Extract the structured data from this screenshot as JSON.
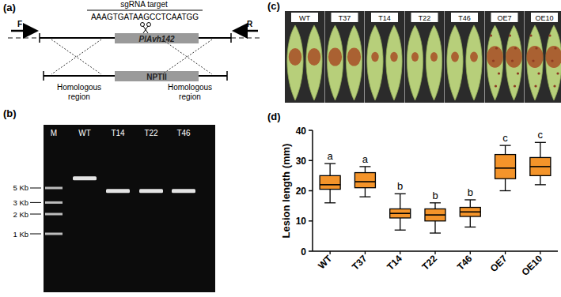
{
  "chart_data": {
    "type": "box",
    "panel_label": "(d)",
    "ylabel": "Lesion length (mm)",
    "categories": [
      "WT",
      "T37",
      "T14",
      "T22",
      "T46",
      "OE7",
      "OE10"
    ],
    "min": [
      16,
      18,
      7,
      6,
      8,
      20,
      22
    ],
    "q1": [
      20.5,
      21,
      11,
      10,
      11.5,
      24,
      25
    ],
    "median": [
      22,
      23,
      12.5,
      12,
      13,
      27.5,
      28
    ],
    "q3": [
      25,
      26,
      14,
      14,
      14.5,
      32,
      31
    ],
    "max": [
      29,
      28,
      19,
      16,
      17,
      35,
      36
    ],
    "letters": [
      "a",
      "a",
      "b",
      "b",
      "b",
      "c",
      "c"
    ],
    "color": "#f4942a",
    "ylim": [
      0,
      40
    ],
    "yticks": [
      0,
      10,
      20,
      30,
      40
    ],
    "grid": false
  },
  "panel_a": {
    "label": "(a)",
    "sgrna_label": "sgRNA target",
    "sequence": "AAAGTGATAAGCCTCAATGG",
    "gene": "PlAvh142",
    "marker_gene": "NPTII",
    "homologous": [
      "Homologous region",
      "Homologous region"
    ],
    "primers": [
      "F",
      "R"
    ]
  },
  "panel_b": {
    "label": "(b)",
    "lanes": [
      "M",
      "WT",
      "T14",
      "T22",
      "T46"
    ],
    "ladder": [
      {
        "value": 5,
        "label": "5 Kb"
      },
      {
        "value": 3,
        "label": "3 Kb"
      },
      {
        "value": 2,
        "label": "2 Kb"
      },
      {
        "value": 1,
        "label": "1 Kb"
      }
    ],
    "bands": [
      7,
      4.5,
      4.5,
      4.5
    ]
  },
  "panel_c": {
    "label": "(c)",
    "samples": [
      "WT",
      "T37",
      "T14",
      "T22",
      "T46",
      "OE7",
      "OE10"
    ]
  }
}
